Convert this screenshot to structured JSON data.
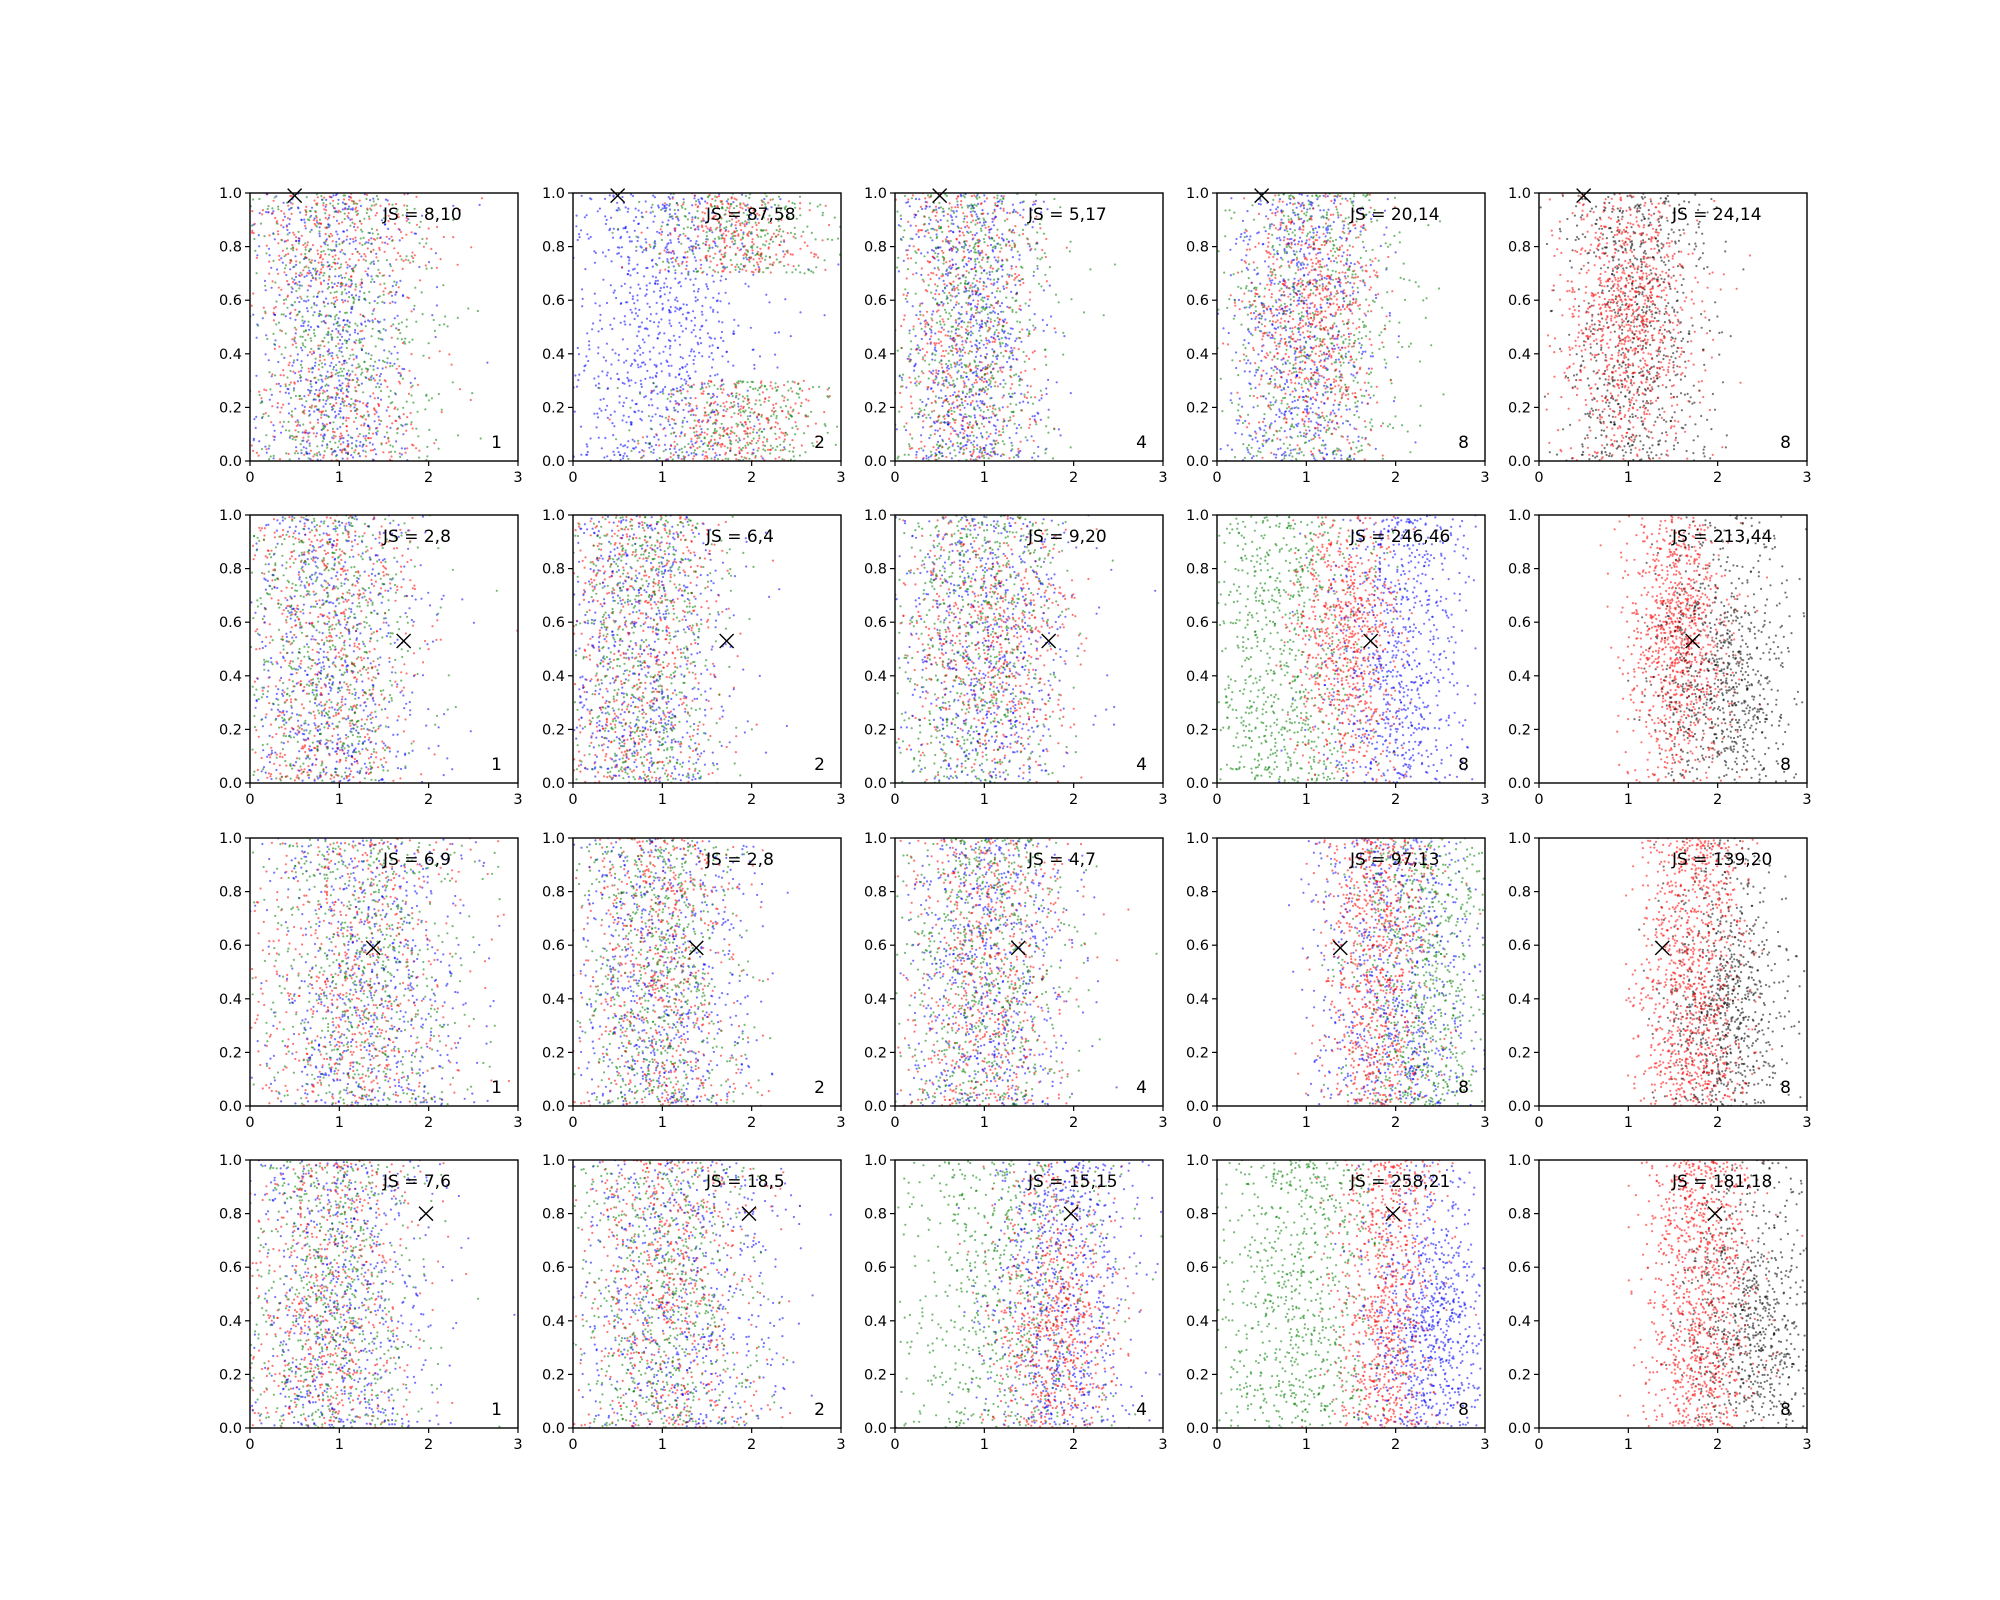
{
  "chart_data": {
    "type": "scatter",
    "layout": {
      "rows": 4,
      "cols": 5
    },
    "xlim": [
      0,
      3
    ],
    "ylim": [
      0,
      1
    ],
    "xticks": [
      0,
      1,
      2,
      3
    ],
    "yticks": [
      0.0,
      0.2,
      0.4,
      0.6,
      0.8,
      1.0
    ],
    "xtick_labels": [
      "0",
      "1",
      "2",
      "3"
    ],
    "ytick_labels": [
      "0.0",
      "0.2",
      "0.4",
      "0.6",
      "0.8",
      "1.0"
    ],
    "colors": {
      "red": "#ff0000",
      "blue": "#0000ff",
      "green": "#008000",
      "black": "#000000"
    },
    "marker": "x",
    "panels": [
      {
        "row": 0,
        "col": 0,
        "js_label": "JS = 8,10",
        "corner_label": "1",
        "marker": [
          0.5,
          0.99
        ],
        "series": [
          {
            "color": "#ff0000",
            "x_mean": 0.95,
            "x_sd": 0.55,
            "n": 650,
            "y_dist": "bimodal"
          },
          {
            "color": "#0000ff",
            "x_mean": 0.9,
            "x_sd": 0.5,
            "n": 650,
            "y_dist": "uniform"
          },
          {
            "color": "#008000",
            "x_mean": 0.95,
            "x_sd": 0.55,
            "n": 650,
            "y_dist": "uniform"
          }
        ]
      },
      {
        "row": 0,
        "col": 1,
        "js_label": "JS = 87,58",
        "corner_label": "2",
        "marker": [
          0.5,
          0.99
        ],
        "series": [
          {
            "color": "#0000ff",
            "x_mean": 1.0,
            "x_sd": 0.55,
            "n": 900,
            "y_dist": "uniform"
          },
          {
            "color": "#ff0000",
            "x_mean": 1.8,
            "x_sd": 0.45,
            "n": 550,
            "y_dist": "edges"
          },
          {
            "color": "#008000",
            "x_mean": 1.9,
            "x_sd": 0.55,
            "n": 550,
            "y_dist": "edges"
          }
        ]
      },
      {
        "row": 0,
        "col": 2,
        "js_label": "JS = 5,17",
        "corner_label": "4",
        "marker": [
          0.5,
          0.99
        ],
        "series": [
          {
            "color": "#ff0000",
            "x_mean": 0.8,
            "x_sd": 0.4,
            "n": 600,
            "y_dist": "uniform"
          },
          {
            "color": "#0000ff",
            "x_mean": 0.85,
            "x_sd": 0.4,
            "n": 700,
            "y_dist": "uniform"
          },
          {
            "color": "#008000",
            "x_mean": 0.85,
            "x_sd": 0.45,
            "n": 650,
            "y_dist": "uniform"
          }
        ]
      },
      {
        "row": 0,
        "col": 3,
        "js_label": "JS = 20,14",
        "corner_label": "8",
        "marker": [
          0.5,
          0.99
        ],
        "series": [
          {
            "color": "#0000ff",
            "x_mean": 0.95,
            "x_sd": 0.4,
            "n": 700,
            "y_dist": "uniform"
          },
          {
            "color": "#008000",
            "x_mean": 1.1,
            "x_sd": 0.5,
            "n": 650,
            "y_dist": "uniform"
          },
          {
            "color": "#ff0000",
            "x_mean": 1.05,
            "x_sd": 0.35,
            "n": 700,
            "y_dist": "top"
          }
        ]
      },
      {
        "row": 0,
        "col": 4,
        "js_label": "JS = 24,14",
        "corner_label": "8",
        "marker": [
          0.5,
          0.99
        ],
        "series": [
          {
            "color": "#000000",
            "x_mean": 1.1,
            "x_sd": 0.4,
            "n": 800,
            "y_dist": "uniform"
          },
          {
            "color": "#ff0000",
            "x_mean": 1.0,
            "x_sd": 0.38,
            "n": 950,
            "y_dist": "top"
          }
        ]
      },
      {
        "row": 1,
        "col": 0,
        "js_label": "JS = 2,8",
        "corner_label": "1",
        "marker": [
          1.72,
          0.53
        ],
        "series": [
          {
            "color": "#ff0000",
            "x_mean": 0.85,
            "x_sd": 0.5,
            "n": 650,
            "y_dist": "uniform"
          },
          {
            "color": "#0000ff",
            "x_mean": 0.9,
            "x_sd": 0.55,
            "n": 650,
            "y_dist": "uniform"
          },
          {
            "color": "#008000",
            "x_mean": 0.85,
            "x_sd": 0.5,
            "n": 650,
            "y_dist": "uniform"
          }
        ]
      },
      {
        "row": 1,
        "col": 1,
        "js_label": "JS = 6,4",
        "corner_label": "2",
        "marker": [
          1.72,
          0.53
        ],
        "series": [
          {
            "color": "#ff0000",
            "x_mean": 0.75,
            "x_sd": 0.45,
            "n": 650,
            "y_dist": "uniform"
          },
          {
            "color": "#0000ff",
            "x_mean": 0.8,
            "x_sd": 0.5,
            "n": 650,
            "y_dist": "uniform"
          },
          {
            "color": "#008000",
            "x_mean": 0.75,
            "x_sd": 0.45,
            "n": 650,
            "y_dist": "uniform"
          }
        ]
      },
      {
        "row": 1,
        "col": 2,
        "js_label": "JS = 9,20",
        "corner_label": "4",
        "marker": [
          1.72,
          0.53
        ],
        "series": [
          {
            "color": "#ff0000",
            "x_mean": 1.05,
            "x_sd": 0.45,
            "n": 650,
            "y_dist": "top"
          },
          {
            "color": "#0000ff",
            "x_mean": 1.0,
            "x_sd": 0.5,
            "n": 650,
            "y_dist": "uniform"
          },
          {
            "color": "#008000",
            "x_mean": 0.95,
            "x_sd": 0.45,
            "n": 650,
            "y_dist": "uniform"
          }
        ]
      },
      {
        "row": 1,
        "col": 3,
        "js_label": "JS = 246,46",
        "corner_label": "8",
        "marker": [
          1.72,
          0.53
        ],
        "series": [
          {
            "color": "#008000",
            "x_mean": 0.75,
            "x_sd": 0.45,
            "n": 800,
            "y_dist": "uniform"
          },
          {
            "color": "#ff0000",
            "x_mean": 1.45,
            "x_sd": 0.28,
            "n": 750,
            "y_dist": "top"
          },
          {
            "color": "#0000ff",
            "x_mean": 2.05,
            "x_sd": 0.4,
            "n": 800,
            "y_dist": "uniform"
          }
        ]
      },
      {
        "row": 1,
        "col": 4,
        "js_label": "JS = 213,44",
        "corner_label": "8",
        "marker": [
          1.72,
          0.53
        ],
        "series": [
          {
            "color": "#ff0000",
            "x_mean": 1.55,
            "x_sd": 0.28,
            "n": 1000,
            "y_dist": "top"
          },
          {
            "color": "#000000",
            "x_mean": 2.05,
            "x_sd": 0.35,
            "n": 800,
            "y_dist": "bottom"
          }
        ]
      },
      {
        "row": 2,
        "col": 0,
        "js_label": "JS = 6,9",
        "corner_label": "1",
        "marker": [
          1.38,
          0.59
        ],
        "series": [
          {
            "color": "#ff0000",
            "x_mean": 1.2,
            "x_sd": 0.6,
            "n": 650,
            "y_dist": "uniform"
          },
          {
            "color": "#0000ff",
            "x_mean": 1.3,
            "x_sd": 0.6,
            "n": 650,
            "y_dist": "uniform"
          },
          {
            "color": "#008000",
            "x_mean": 1.25,
            "x_sd": 0.6,
            "n": 650,
            "y_dist": "uniform"
          }
        ]
      },
      {
        "row": 2,
        "col": 1,
        "js_label": "JS = 2,8",
        "corner_label": "2",
        "marker": [
          1.38,
          0.59
        ],
        "series": [
          {
            "color": "#ff0000",
            "x_mean": 0.95,
            "x_sd": 0.45,
            "n": 650,
            "y_dist": "uniform"
          },
          {
            "color": "#0000ff",
            "x_mean": 1.0,
            "x_sd": 0.5,
            "n": 650,
            "y_dist": "uniform"
          },
          {
            "color": "#008000",
            "x_mean": 0.95,
            "x_sd": 0.45,
            "n": 650,
            "y_dist": "uniform"
          }
        ]
      },
      {
        "row": 2,
        "col": 2,
        "js_label": "JS = 4,7",
        "corner_label": "4",
        "marker": [
          1.38,
          0.59
        ],
        "series": [
          {
            "color": "#ff0000",
            "x_mean": 1.0,
            "x_sd": 0.45,
            "n": 650,
            "y_dist": "uniform"
          },
          {
            "color": "#0000ff",
            "x_mean": 1.05,
            "x_sd": 0.45,
            "n": 650,
            "y_dist": "uniform"
          },
          {
            "color": "#008000",
            "x_mean": 1.0,
            "x_sd": 0.45,
            "n": 650,
            "y_dist": "uniform"
          }
        ]
      },
      {
        "row": 2,
        "col": 3,
        "js_label": "JS = 97,13",
        "corner_label": "8",
        "marker": [
          1.38,
          0.59
        ],
        "series": [
          {
            "color": "#008000",
            "x_mean": 2.3,
            "x_sd": 0.4,
            "n": 750,
            "y_dist": "uniform"
          },
          {
            "color": "#0000ff",
            "x_mean": 2.0,
            "x_sd": 0.45,
            "n": 750,
            "y_dist": "uniform"
          },
          {
            "color": "#ff0000",
            "x_mean": 1.8,
            "x_sd": 0.3,
            "n": 800,
            "y_dist": "uniform"
          }
        ]
      },
      {
        "row": 2,
        "col": 4,
        "js_label": "JS = 139,20",
        "corner_label": "8",
        "marker": [
          1.38,
          0.59
        ],
        "series": [
          {
            "color": "#000000",
            "x_mean": 2.1,
            "x_sd": 0.35,
            "n": 800,
            "y_dist": "bottom"
          },
          {
            "color": "#ff0000",
            "x_mean": 1.7,
            "x_sd": 0.3,
            "n": 1000,
            "y_dist": "uniform"
          }
        ]
      },
      {
        "row": 3,
        "col": 0,
        "js_label": "JS = 7,6",
        "corner_label": "1",
        "marker": [
          1.97,
          0.8
        ],
        "series": [
          {
            "color": "#ff0000",
            "x_mean": 0.85,
            "x_sd": 0.5,
            "n": 650,
            "y_dist": "uniform"
          },
          {
            "color": "#0000ff",
            "x_mean": 1.0,
            "x_sd": 0.55,
            "n": 650,
            "y_dist": "uniform"
          },
          {
            "color": "#008000",
            "x_mean": 0.9,
            "x_sd": 0.5,
            "n": 650,
            "y_dist": "uniform"
          }
        ]
      },
      {
        "row": 3,
        "col": 1,
        "js_label": "JS = 18,5",
        "corner_label": "2",
        "marker": [
          1.97,
          0.8
        ],
        "series": [
          {
            "color": "#ff0000",
            "x_mean": 1.05,
            "x_sd": 0.5,
            "n": 650,
            "y_dist": "uniform"
          },
          {
            "color": "#0000ff",
            "x_mean": 1.2,
            "x_sd": 0.6,
            "n": 650,
            "y_dist": "uniform"
          },
          {
            "color": "#008000",
            "x_mean": 1.0,
            "x_sd": 0.5,
            "n": 650,
            "y_dist": "uniform"
          }
        ]
      },
      {
        "row": 3,
        "col": 2,
        "js_label": "JS = 15,15",
        "corner_label": "4",
        "marker": [
          1.97,
          0.8
        ],
        "series": [
          {
            "color": "#008000",
            "x_mean": 1.2,
            "x_sd": 0.6,
            "n": 700,
            "y_dist": "uniform"
          },
          {
            "color": "#ff0000",
            "x_mean": 1.8,
            "x_sd": 0.35,
            "n": 700,
            "y_dist": "bottom"
          },
          {
            "color": "#0000ff",
            "x_mean": 1.85,
            "x_sd": 0.4,
            "n": 700,
            "y_dist": "uniform"
          }
        ]
      },
      {
        "row": 3,
        "col": 3,
        "js_label": "JS = 258,21",
        "corner_label": "8",
        "marker": [
          1.97,
          0.8
        ],
        "series": [
          {
            "color": "#008000",
            "x_mean": 0.9,
            "x_sd": 0.5,
            "n": 800,
            "y_dist": "uniform"
          },
          {
            "color": "#ff0000",
            "x_mean": 1.9,
            "x_sd": 0.28,
            "n": 800,
            "y_dist": "uniform"
          },
          {
            "color": "#0000ff",
            "x_mean": 2.4,
            "x_sd": 0.35,
            "n": 800,
            "y_dist": "bottom"
          }
        ]
      },
      {
        "row": 3,
        "col": 4,
        "js_label": "JS = 181,18",
        "corner_label": "8",
        "marker": [
          1.97,
          0.8
        ],
        "series": [
          {
            "color": "#000000",
            "x_mean": 2.35,
            "x_sd": 0.35,
            "n": 800,
            "y_dist": "bottom"
          },
          {
            "color": "#ff0000",
            "x_mean": 1.8,
            "x_sd": 0.3,
            "n": 1000,
            "y_dist": "uniform"
          }
        ]
      }
    ]
  }
}
